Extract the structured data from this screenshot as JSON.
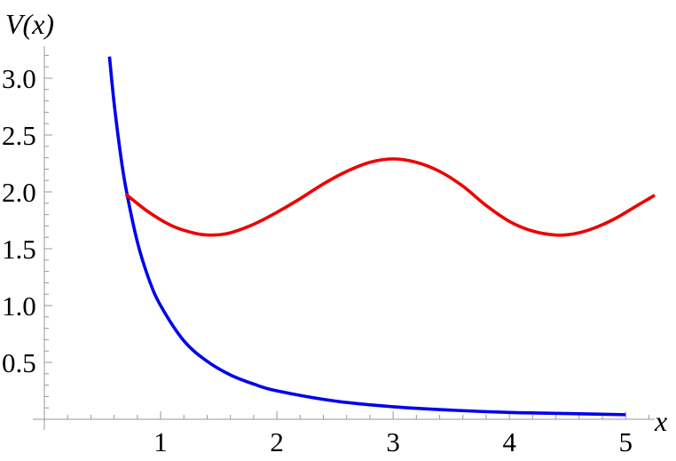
{
  "chart_data": {
    "type": "line",
    "xlabel": "x",
    "ylabel": "V(x)",
    "xlim": [
      0,
      5.25
    ],
    "ylim": [
      0,
      3.25
    ],
    "x_ticks": [
      1,
      2,
      3,
      4,
      5
    ],
    "x_tick_labels": [
      "1",
      "2",
      "3",
      "4",
      "5"
    ],
    "y_ticks": [
      0.5,
      1.0,
      1.5,
      2.0,
      2.5,
      3.0
    ],
    "y_tick_labels": [
      "0.5",
      "1.0",
      "1.5",
      "2.0",
      "2.5",
      "3.0"
    ],
    "grid": false,
    "series": [
      {
        "color": "#0000ee",
        "x": [
          0.56,
          0.6,
          0.65,
          0.7,
          0.8,
          0.9,
          1.0,
          1.2,
          1.4,
          1.6,
          1.8,
          2.0,
          2.5,
          3.0,
          3.5,
          4.0,
          4.5,
          5.0
        ],
        "y": [
          3.19,
          2.78,
          2.37,
          2.04,
          1.56,
          1.23,
          1.0,
          0.69,
          0.51,
          0.39,
          0.31,
          0.25,
          0.16,
          0.11,
          0.08,
          0.06,
          0.05,
          0.04
        ]
      },
      {
        "color": "#ee0000",
        "x": [
          0.7,
          0.9,
          1.1,
          1.3,
          1.45,
          1.6,
          1.8,
          2.0,
          2.2,
          2.4,
          2.6,
          2.8,
          3.0,
          3.2,
          3.4,
          3.6,
          3.8,
          4.0,
          4.2,
          4.4,
          4.55,
          4.7,
          4.9,
          5.1,
          5.25
        ],
        "y": [
          1.98,
          1.82,
          1.7,
          1.635,
          1.62,
          1.64,
          1.715,
          1.82,
          1.94,
          2.07,
          2.18,
          2.26,
          2.29,
          2.26,
          2.18,
          2.05,
          1.88,
          1.74,
          1.655,
          1.62,
          1.63,
          1.67,
          1.76,
          1.88,
          1.97
        ]
      }
    ]
  }
}
